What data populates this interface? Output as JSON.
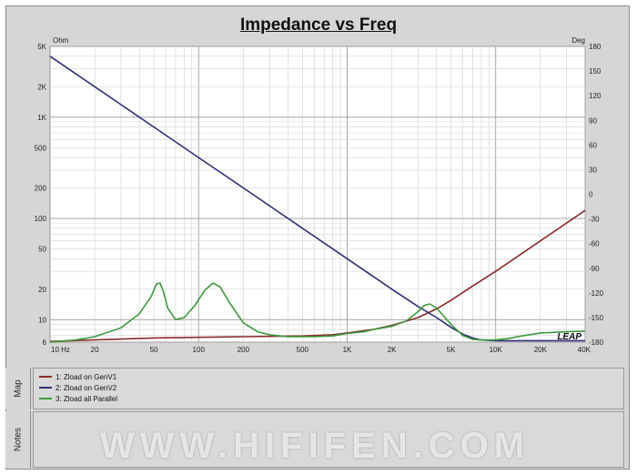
{
  "chart_data": {
    "type": "line",
    "title": "Impedance vs Freq",
    "left_axis": {
      "unit": "Ohm",
      "scale": "log",
      "range": [
        6,
        5000
      ],
      "ticks": [
        {
          "value": 5000,
          "label": "5K"
        },
        {
          "value": 2000,
          "label": "2K"
        },
        {
          "value": 1000,
          "label": "1K"
        },
        {
          "value": 500,
          "label": "500"
        },
        {
          "value": 200,
          "label": "200"
        },
        {
          "value": 100,
          "label": "100"
        },
        {
          "value": 50,
          "label": "50"
        },
        {
          "value": 20,
          "label": "20"
        },
        {
          "value": 10,
          "label": "10"
        },
        {
          "value": 6,
          "label": "6"
        }
      ]
    },
    "right_axis": {
      "unit": "Deg",
      "range": [
        -180,
        180
      ],
      "ticks": [
        180,
        150,
        120,
        90,
        60,
        30,
        0,
        -30,
        -60,
        -90,
        -120,
        -150,
        -180
      ]
    },
    "x_axis": {
      "scale": "log",
      "range": [
        10,
        40000
      ],
      "ticks": [
        {
          "value": 10,
          "label": "10  Hz"
        },
        {
          "value": 20,
          "label": "20"
        },
        {
          "value": 50,
          "label": "50"
        },
        {
          "value": 100,
          "label": "100"
        },
        {
          "value": 200,
          "label": "200"
        },
        {
          "value": 500,
          "label": "500"
        },
        {
          "value": 1000,
          "label": "1K"
        },
        {
          "value": 2000,
          "label": "2K"
        },
        {
          "value": 5000,
          "label": "5K"
        },
        {
          "value": 10000,
          "label": "10K"
        },
        {
          "value": 20000,
          "label": "20K"
        },
        {
          "value": 40000,
          "label": "40K"
        }
      ]
    },
    "grid": true,
    "brand": "LEAP",
    "series": [
      {
        "name": "1: Zload on GenV1",
        "color": "#8b2a2a",
        "x": [
          10,
          20,
          50,
          100,
          200,
          500,
          800,
          1000,
          1500,
          2000,
          3000,
          4000,
          5000,
          7000,
          10000,
          20000,
          40000
        ],
        "y": [
          6.1,
          6.3,
          6.6,
          6.7,
          6.8,
          6.9,
          7.1,
          7.4,
          8.0,
          8.8,
          10.5,
          12.8,
          15.5,
          21.5,
          30,
          60,
          120
        ]
      },
      {
        "name": "2: Zload on GenV2",
        "color": "#2e2f7a",
        "x": [
          10,
          20,
          50,
          100,
          200,
          500,
          1000,
          2000,
          3000,
          4000,
          5000,
          6000,
          7000,
          8000,
          10000,
          15000,
          20000,
          40000
        ],
        "y": [
          4000,
          2000,
          800,
          400,
          200,
          80,
          40,
          20,
          13.5,
          10.5,
          8.4,
          7.2,
          6.6,
          6.3,
          6.2,
          6.2,
          6.2,
          6.2
        ]
      },
      {
        "name": "3: Zload all Parallel",
        "color": "#3c9a3c",
        "x": [
          10,
          15,
          20,
          30,
          40,
          48,
          52,
          55,
          58,
          62,
          70,
          80,
          95,
          110,
          125,
          140,
          160,
          200,
          250,
          300,
          400,
          600,
          800,
          1000,
          1300,
          1500,
          2000,
          2500,
          3000,
          3300,
          3600,
          4000,
          5000,
          6000,
          7000,
          8000,
          10000,
          12000,
          15000,
          20000,
          30000,
          40000
        ],
        "y": [
          6.0,
          6.3,
          6.8,
          8.3,
          11.5,
          17,
          22.5,
          23,
          19,
          13,
          10,
          10.5,
          14,
          19.5,
          23,
          21,
          15,
          9.3,
          7.6,
          7.1,
          6.8,
          6.8,
          6.9,
          7.3,
          7.6,
          8.0,
          8.6,
          9.7,
          12,
          13.8,
          14.3,
          13,
          9.0,
          7.0,
          6.4,
          6.3,
          6.3,
          6.5,
          6.9,
          7.4,
          7.6,
          7.7
        ]
      }
    ]
  },
  "map_label": "Map",
  "notes_label": "Notes",
  "legend": [
    {
      "label": "1: Zload on GenV1",
      "color": "#8b2a2a"
    },
    {
      "label": "2: Zload on GenV2",
      "color": "#2e2f7a"
    },
    {
      "label": "3: Zload all Parallel",
      "color": "#3c9a3c"
    }
  ],
  "watermark": "WWW.HIFIFEN.COM"
}
